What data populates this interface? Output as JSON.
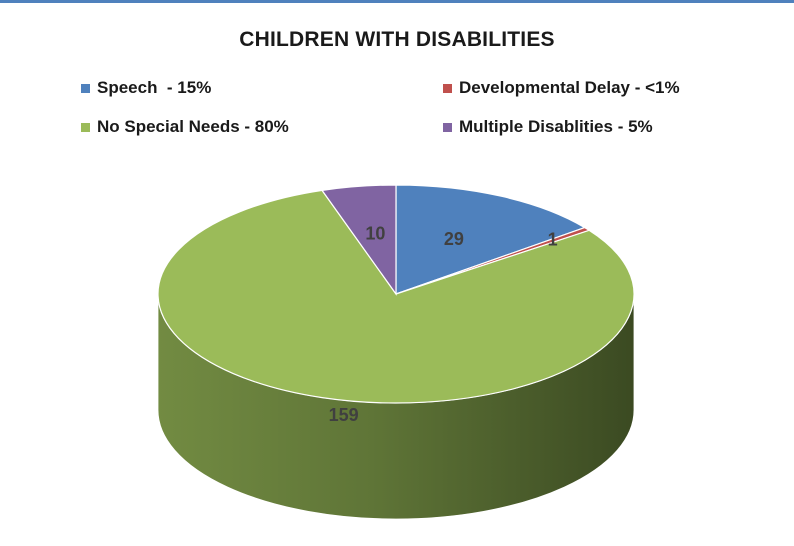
{
  "chart_data": {
    "type": "pie",
    "title": "CHILDREN WITH DISABILITIES",
    "legend_position": "top",
    "categories": [
      "Speech  - 15%",
      "Developmental Delay - <1%",
      "No Special Needs - 80%",
      "Multiple Disablities - 5%"
    ],
    "values": [
      29,
      1,
      159,
      10
    ],
    "data_labels": [
      "29",
      "1",
      "159",
      "10"
    ],
    "colors": [
      "#4f81bd",
      "#c0504d",
      "#9bbb59",
      "#8064a2"
    ],
    "style": "3d"
  }
}
